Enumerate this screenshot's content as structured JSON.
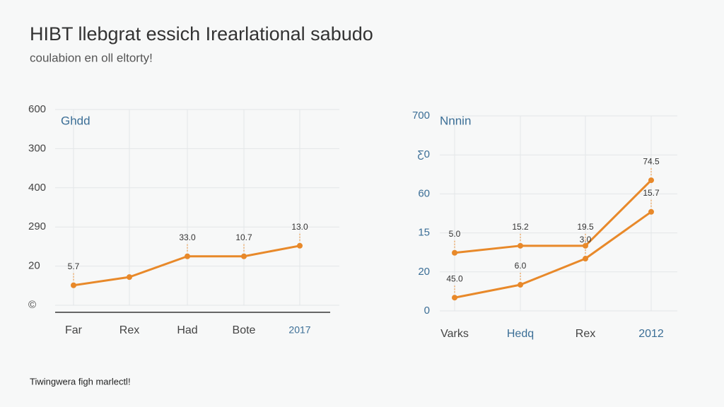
{
  "title": "HIBT llebgrat essich Irearlational sabudo",
  "subtitle": "coulabion en oll eltorty!",
  "footer": "Tiwingwera figh marlectl!",
  "chart_data": [
    {
      "type": "line",
      "title": "Ghdd",
      "categories": [
        "Far",
        "Rex",
        "Had",
        "Bote",
        "2017"
      ],
      "series": [
        {
          "color": "#e8892a",
          "values": [
            0.51,
            0.72,
            1.25,
            1.25,
            1.52
          ],
          "value_labels": [
            "5.7",
            null,
            "33.0",
            "10.7",
            "13.0"
          ]
        }
      ],
      "ylim": [
        0,
        5
      ],
      "yticks": [
        {
          "value": 0,
          "label": "©"
        },
        {
          "value": 1,
          "label": "20"
        },
        {
          "value": 2,
          "label": "290"
        },
        {
          "value": 3,
          "label": "400"
        },
        {
          "value": 4,
          "label": "300"
        },
        {
          "value": 5,
          "label": "600"
        }
      ],
      "grid": true
    },
    {
      "type": "line",
      "title": "Nnnin",
      "categories": [
        "Varks",
        "Hedq",
        "Rex",
        "2012"
      ],
      "series": [
        {
          "color": "#e8892a",
          "values": [
            1.49,
            1.67,
            1.67,
            3.35
          ],
          "value_labels": [
            "5.0",
            "15.2",
            "19.5",
            "74.5"
          ]
        },
        {
          "color": "#e8892a",
          "values": [
            0.34,
            0.67,
            1.34,
            2.54
          ],
          "value_labels": [
            "45.0",
            "6.0",
            "3.0",
            "15.7"
          ]
        }
      ],
      "ylim": [
        0,
        5
      ],
      "yticks": [
        {
          "value": 0,
          "label": "0"
        },
        {
          "value": 1,
          "label": "20"
        },
        {
          "value": 2,
          "label": "15"
        },
        {
          "value": 3,
          "label": "60"
        },
        {
          "value": 4,
          "label": "Ƹ0"
        },
        {
          "value": 5,
          "label": "700"
        }
      ],
      "grid": true
    }
  ]
}
